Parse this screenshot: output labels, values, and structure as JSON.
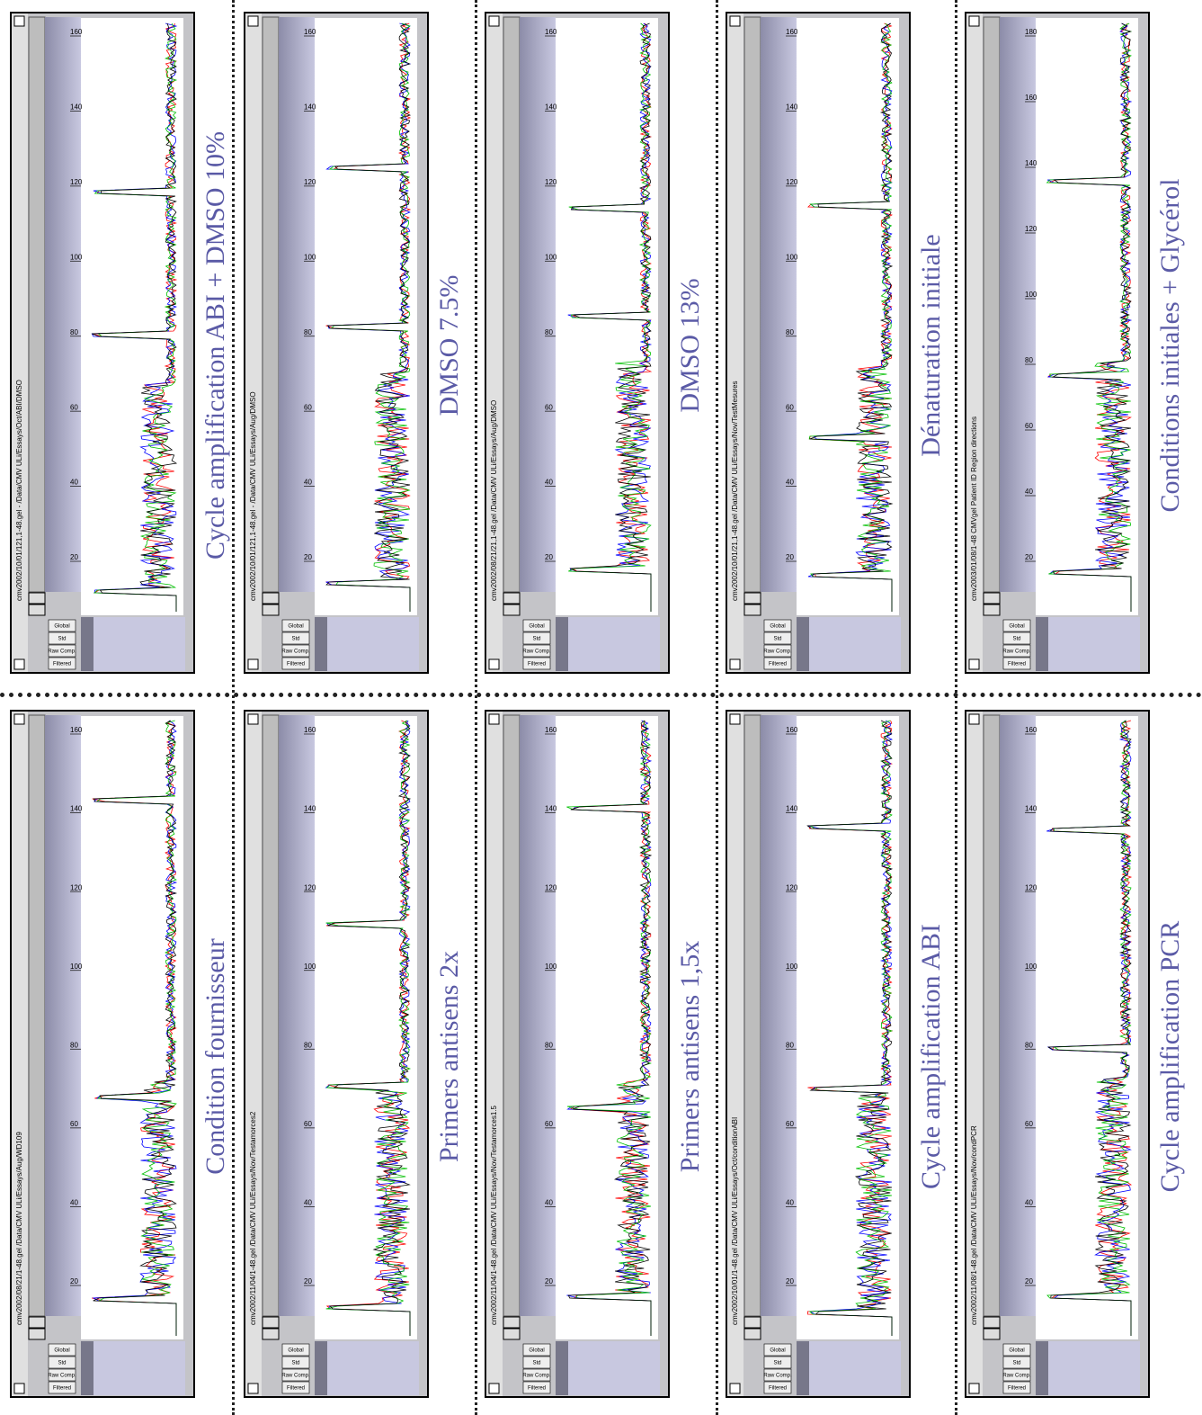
{
  "controls": [
    "Filtered",
    "Raw Comp.",
    "Std",
    "Global"
  ],
  "panels": [
    {
      "caption": "Cycle amplification ABI + DMSO 10%",
      "window_title": "cmv2002/10/01/121,1-48.gel - /Data/CMV ULi/Essays/Oct/ABI/DMSO",
      "ticks": [
        "20",
        "40",
        "60",
        "80",
        "100",
        "120",
        "140",
        "160"
      ]
    },
    {
      "caption": "DMSO 7.5%",
      "window_title": "cmv2002/10/01/121,1-48.gel - /Data/CMV ULi/Essays/Aug/DMSO",
      "ticks": [
        "20",
        "40",
        "60",
        "80",
        "100",
        "120",
        "140",
        "160"
      ]
    },
    {
      "caption": "DMSO 13%",
      "window_title": "cmv2002/08/21/21,1-48.gel /Data/CMV ULi/Essays/Aug/DMSO",
      "ticks": [
        "20",
        "40",
        "60",
        "80",
        "100",
        "120",
        "140",
        "160"
      ]
    },
    {
      "caption": "Dénaturation initiale",
      "window_title": "cmv2002/10/01/21,1-48.gel /Data/CMV ULi/Essays/Nov/TestMesures",
      "ticks": [
        "20",
        "40",
        "60",
        "80",
        "100",
        "120",
        "140",
        "160"
      ]
    },
    {
      "caption": "Conditions initiales + Glycérol",
      "window_title": "cmv2003/01/08/1-48 CMVgel Patient ID Region directions",
      "ticks": [
        "20",
        "40",
        "60",
        "80",
        "100",
        "120",
        "140",
        "160",
        "180"
      ]
    },
    {
      "caption": "Condition fournisseur",
      "window_title": "cmv2002/08/21/1-48.gel /Data/CMV ULi/Essays/Aug/WD109",
      "ticks": [
        "20",
        "40",
        "60",
        "80",
        "100",
        "120",
        "140",
        "160"
      ]
    },
    {
      "caption": "Primers antisens 2x",
      "window_title": "cmv2002/11/04/1-48.gel /Data/CMV ULi/Essays/Nov/Testamorces2",
      "ticks": [
        "20",
        "40",
        "60",
        "80",
        "100",
        "120",
        "140",
        "160"
      ]
    },
    {
      "caption": "Primers antisens 1,5x",
      "window_title": "cmv2002/11/04/1-48.gel /Data/CMV ULi/Essays/Nov/Testamorces1.5",
      "ticks": [
        "20",
        "40",
        "60",
        "80",
        "100",
        "120",
        "140",
        "160"
      ]
    },
    {
      "caption": "Cycle amplification ABI",
      "window_title": "cmv2002/10/01/1-48.gel /Data/CMV ULi/Essays/Oct/conditionABI",
      "ticks": [
        "20",
        "40",
        "60",
        "80",
        "100",
        "120",
        "140",
        "160"
      ]
    },
    {
      "caption": "Cycle amplification PCR",
      "window_title": "cmv2002/11/08/1-48.gel /Data/CMV ULi/Essays/Nov/condPCR",
      "ticks": [
        "20",
        "40",
        "60",
        "80",
        "100",
        "120",
        "140",
        "160"
      ]
    }
  ]
}
